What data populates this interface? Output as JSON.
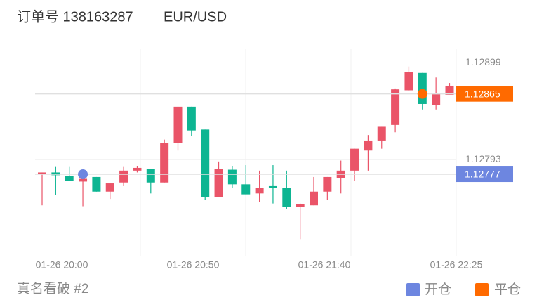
{
  "chart_data": {
    "type": "candlestick",
    "title": "订单号 138163287",
    "symbol": "EUR/USD",
    "footer": "真名看破 #2",
    "up_color": "#ea5468",
    "down_color": "#0db592",
    "ylim": [
      1.12687,
      1.12914
    ],
    "yticks": [
      1.12899,
      1.12793
    ],
    "xticks": [
      "01-26 20:00",
      "01-26 20:50",
      "01-26 21:40",
      "01-26 22:25"
    ],
    "open": [
      1.12777,
      1.12779,
      1.12775,
      1.12769,
      1.12774,
      1.12758,
      1.12768,
      1.12781,
      1.12783,
      1.12768,
      1.12811,
      1.12851,
      1.12826,
      1.12752,
      1.12782,
      1.12766,
      1.12756,
      1.12764,
      1.12762,
      1.12741,
      1.12743,
      1.12758,
      1.12773,
      1.12781,
      1.12803,
      1.12814,
      1.12831,
      1.12869,
      1.12888,
      1.12853,
      1.12864
    ],
    "high": [
      1.12779,
      1.12785,
      1.12785,
      1.12775,
      1.12774,
      1.12767,
      1.12785,
      1.12786,
      1.12783,
      1.12815,
      1.12851,
      1.12851,
      1.12826,
      1.12791,
      1.12786,
      1.12787,
      1.12781,
      1.12787,
      1.12781,
      1.12745,
      1.12774,
      1.12774,
      1.12792,
      1.12805,
      1.1282,
      1.12829,
      1.12871,
      1.12895,
      1.12888,
      1.12883,
      1.12877
    ],
    "low": [
      1.12743,
      1.12754,
      1.1277,
      1.12742,
      1.12758,
      1.1275,
      1.12764,
      1.12779,
      1.12756,
      1.12768,
      1.12803,
      1.12819,
      1.12749,
      1.12752,
      1.12762,
      1.12755,
      1.12747,
      1.12745,
      1.12739,
      1.12706,
      1.12743,
      1.12749,
      1.12756,
      1.1277,
      1.12781,
      1.12805,
      1.12823,
      1.12868,
      1.12848,
      1.12848,
      1.12864
    ],
    "close": [
      1.12779,
      1.12776,
      1.1277,
      1.12772,
      1.12758,
      1.12767,
      1.12781,
      1.12784,
      1.12768,
      1.12811,
      1.12851,
      1.12825,
      1.12752,
      1.12783,
      1.12766,
      1.12755,
      1.12762,
      1.12762,
      1.12741,
      1.12744,
      1.12758,
      1.12774,
      1.12781,
      1.12805,
      1.12814,
      1.12829,
      1.1287,
      1.12889,
      1.12854,
      1.12866,
      1.12874
    ],
    "entry": {
      "name": "开仓",
      "color": "#6d86e0",
      "price": 1.12777,
      "index": 3
    },
    "exit": {
      "name": "平仓",
      "color": "#ff6a00",
      "price": 1.12865,
      "index": 28
    }
  }
}
